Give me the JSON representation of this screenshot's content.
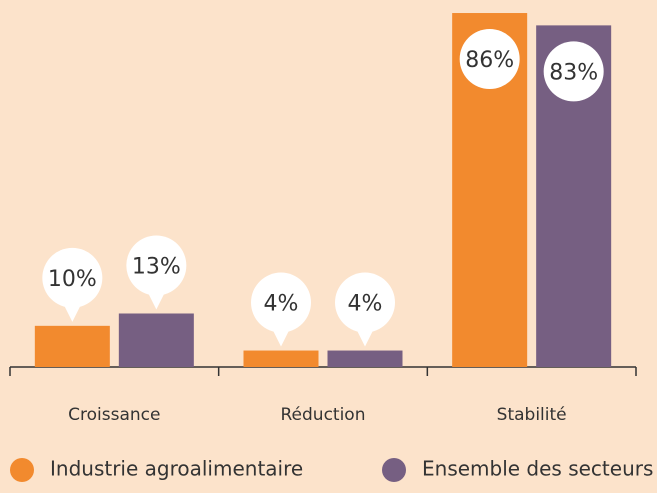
{
  "chart_data": {
    "type": "bar",
    "categories": [
      "Croissance",
      "Réduction",
      "Stabilité"
    ],
    "series": [
      {
        "name": "Industrie agroalimentaire",
        "color": "#f28a2e",
        "values": [
          10,
          4,
          86
        ],
        "value_labels": [
          "10%",
          "4%",
          "86%"
        ]
      },
      {
        "name": "Ensemble des secteurs",
        "color": "#765f82",
        "values": [
          13,
          4,
          83
        ],
        "value_labels": [
          "13%",
          "4%",
          "83%"
        ]
      }
    ],
    "legend": "bottom"
  }
}
